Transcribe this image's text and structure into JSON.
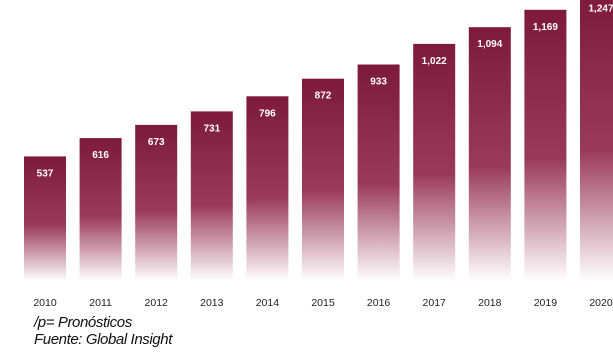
{
  "chart_data": {
    "type": "bar",
    "categories": [
      "2010",
      "2011",
      "2012",
      "2013",
      "2014",
      "2015",
      "2016",
      "2017",
      "2018",
      "2019",
      "2020"
    ],
    "values": [
      537,
      616,
      673,
      731,
      796,
      872,
      933,
      1022,
      1094,
      1169,
      1247
    ],
    "value_labels": [
      "537",
      "616",
      "673",
      "731",
      "796",
      "872",
      "933",
      "1,022",
      "1,094",
      "1,169",
      "1,247"
    ],
    "title": "",
    "xlabel": "",
    "ylabel": "",
    "grid": false,
    "legend": "none",
    "colors": {
      "bar_top": "#7d1a3c",
      "bar_mid": "#9a3a5a",
      "bar_bottom": "#ffffff",
      "value_label": "#ffffff",
      "tick_label": "#222222"
    }
  },
  "notes": {
    "forecast_note": "/p= Pronósticos",
    "source": "Fuente: Global Insight"
  }
}
